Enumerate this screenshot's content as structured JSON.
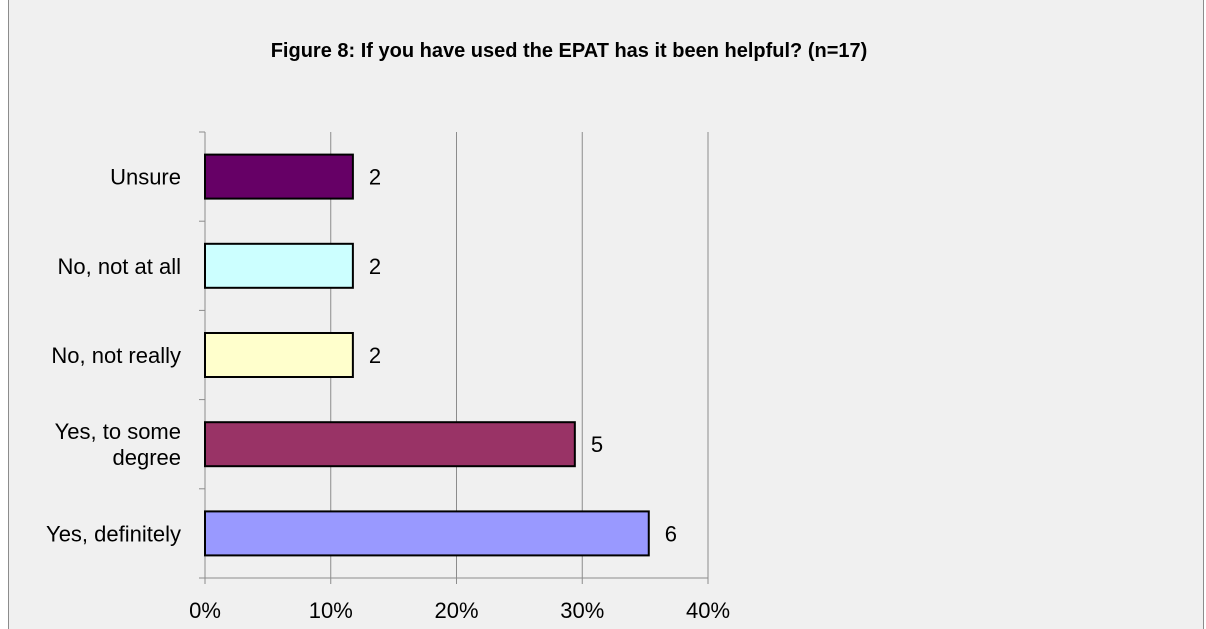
{
  "chart_data": {
    "type": "bar",
    "orientation": "horizontal",
    "title": "Figure 8: If you have used the EPAT has it been helpful? (n=17)",
    "categories": [
      "Unsure",
      "No, not at all",
      "No, not really",
      "Yes, to some degree",
      "Yes, definitely"
    ],
    "category_lines": [
      [
        "Unsure"
      ],
      [
        "No, not at all"
      ],
      [
        "No, not really"
      ],
      [
        "Yes, to some",
        "degree"
      ],
      [
        "Yes, definitely"
      ]
    ],
    "values": [
      11.76,
      11.76,
      11.76,
      29.41,
      35.29
    ],
    "data_labels": [
      "2",
      "2",
      "2",
      "5",
      "6"
    ],
    "colors": [
      "#660066",
      "#ccffff",
      "#ffffcc",
      "#993366",
      "#9999ff"
    ],
    "xlim": [
      0,
      40
    ],
    "xticks": [
      0,
      10,
      20,
      30,
      40
    ],
    "xtick_labels": [
      "0%",
      "10%",
      "20%",
      "30%",
      "40%"
    ],
    "grid": true,
    "xlabel": "",
    "ylabel": ""
  }
}
